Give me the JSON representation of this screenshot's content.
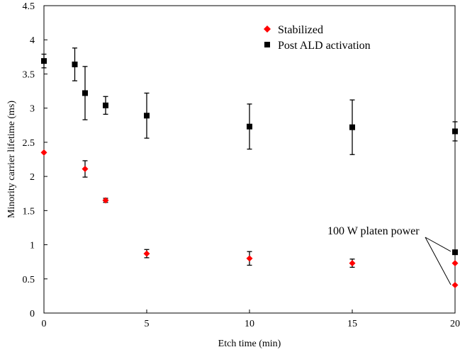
{
  "chart_data": {
    "type": "scatter",
    "xlabel": "Etch time (min)",
    "ylabel": "Minority carrier lifetime (ms)",
    "xlim": [
      0,
      20
    ],
    "ylim": [
      0,
      4.5
    ],
    "xticks": [
      0,
      5,
      10,
      15,
      20
    ],
    "yticks": [
      0,
      0.5,
      1,
      1.5,
      2,
      2.5,
      3,
      3.5,
      4,
      4.5
    ],
    "xtick_labels": [
      "0",
      "5",
      "10",
      "15",
      "20"
    ],
    "ytick_labels": [
      "0",
      "0.5",
      "1",
      "1.5",
      "2",
      "2.5",
      "3",
      "3.5",
      "4",
      "4.5"
    ],
    "grid": false,
    "legend_position": "top-right",
    "series": [
      {
        "name": "Stabilized",
        "marker": "diamond",
        "color": "#ff0000",
        "points": [
          {
            "x": 0,
            "y": 2.35,
            "err": 0
          },
          {
            "x": 2,
            "y": 2.11,
            "err": 0.12
          },
          {
            "x": 3,
            "y": 1.65,
            "err": 0.03
          },
          {
            "x": 5,
            "y": 0.87,
            "err": 0.06
          },
          {
            "x": 10,
            "y": 0.8,
            "err": 0.1
          },
          {
            "x": 15,
            "y": 0.73,
            "err": 0.06
          },
          {
            "x": 20,
            "y": 0.73,
            "err": 0
          },
          {
            "x": 20,
            "y": 0.41,
            "err": 0
          }
        ]
      },
      {
        "name": "Post ALD activation",
        "marker": "square",
        "color": "#000000",
        "points": [
          {
            "x": 0,
            "y": 3.69,
            "err": 0.1
          },
          {
            "x": 1.5,
            "y": 3.64,
            "err": 0.24
          },
          {
            "x": 2,
            "y": 3.22,
            "err": 0.39
          },
          {
            "x": 3,
            "y": 3.04,
            "err": 0.13
          },
          {
            "x": 5,
            "y": 2.89,
            "err": 0.33
          },
          {
            "x": 10,
            "y": 2.73,
            "err": 0.33
          },
          {
            "x": 15,
            "y": 2.72,
            "err": 0.4
          },
          {
            "x": 20,
            "y": 2.66,
            "err": 0.14
          },
          {
            "x": 20,
            "y": 0.89,
            "err": 0
          }
        ]
      }
    ],
    "annotations": [
      {
        "text": "100 W platen power",
        "arrow_targets": [
          {
            "x": 20,
            "y": 0.89
          },
          {
            "x": 20,
            "y": 0.41
          }
        ]
      }
    ]
  }
}
